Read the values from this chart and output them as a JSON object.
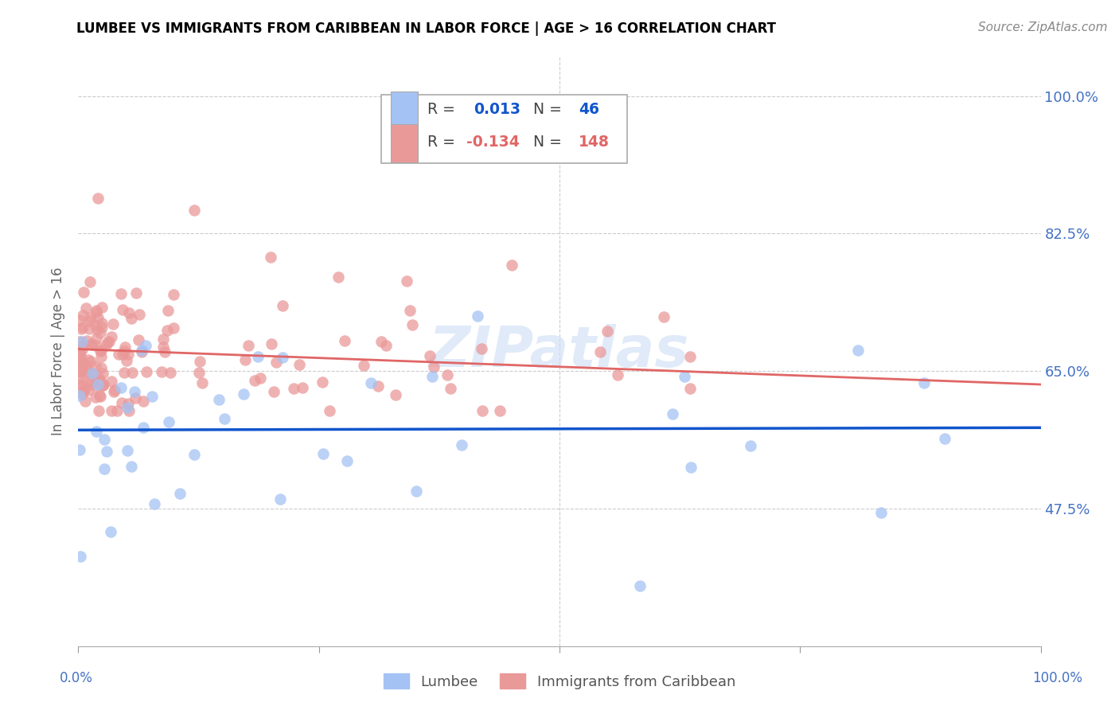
{
  "title": "LUMBEE VS IMMIGRANTS FROM CARIBBEAN IN LABOR FORCE | AGE > 16 CORRELATION CHART",
  "source": "Source: ZipAtlas.com",
  "ylabel": "In Labor Force | Age > 16",
  "xlim": [
    0.0,
    1.0
  ],
  "ylim": [
    0.3,
    1.05
  ],
  "yticks": [
    0.475,
    0.65,
    0.825,
    1.0
  ],
  "ytick_labels": [
    "47.5%",
    "65.0%",
    "82.5%",
    "100.0%"
  ],
  "watermark": "ZIPatlas",
  "lumbee_R": 0.013,
  "lumbee_N": 46,
  "carib_R": -0.134,
  "carib_N": 148,
  "lumbee_color": "#a4c2f4",
  "carib_color": "#ea9999",
  "lumbee_line_color": "#1155cc",
  "carib_line_color": "#e06666",
  "bg_color": "#ffffff",
  "grid_color": "#cccccc",
  "axis_label_color": "#4472c4",
  "title_color": "#000000",
  "lumbee_line_y_start": 0.575,
  "lumbee_line_y_end": 0.578,
  "carib_line_y_start": 0.678,
  "carib_line_y_end": 0.633
}
